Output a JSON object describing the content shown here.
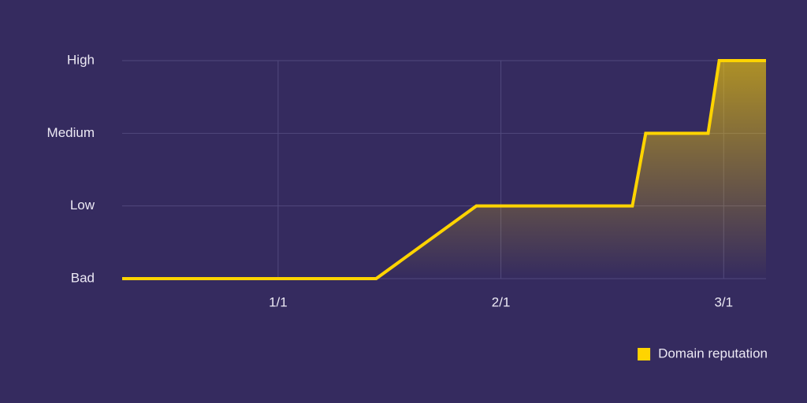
{
  "chart_data": {
    "type": "line",
    "x": [
      -0.7,
      0.44,
      0.89,
      1.59,
      1.65,
      1.93,
      1.98,
      2.19
    ],
    "series": [
      {
        "name": "Domain reputation",
        "color": "#ffd400",
        "values": [
          0,
          0,
          1,
          1,
          2,
          2,
          3,
          3
        ]
      }
    ],
    "xlim": [
      -0.7,
      2.19
    ],
    "xticks": [
      {
        "value": 0,
        "label": "1/1"
      },
      {
        "value": 1,
        "label": "2/1"
      },
      {
        "value": 2,
        "label": "3/1"
      }
    ],
    "ylim": [
      0,
      3
    ],
    "yticks": [
      {
        "value": 0,
        "label": "Bad"
      },
      {
        "value": 1,
        "label": "Low"
      },
      {
        "value": 2,
        "label": "Medium"
      },
      {
        "value": 3,
        "label": "High"
      }
    ],
    "grid": true,
    "area_fill": true,
    "legend": "lower right"
  }
}
